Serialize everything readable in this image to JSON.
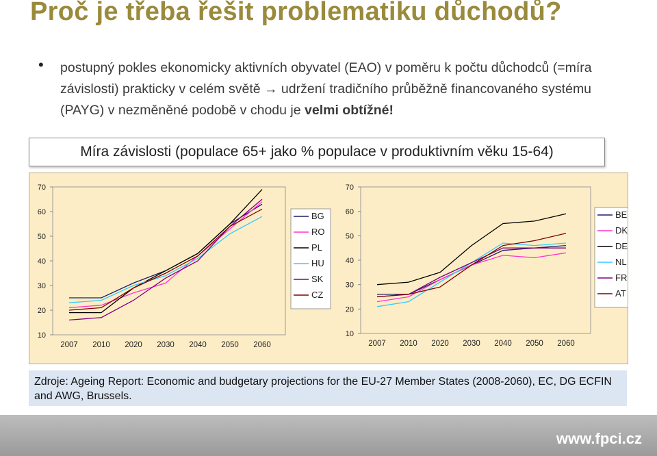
{
  "slide": {
    "title": "Proč je třeba řešit problematiku důchodů?",
    "bullet": {
      "part1": "postupný pokles ekonomicky aktivních obyvatel (EAO) v poměru k počtu důchodců (=míra závislosti) prakticky v celém světě → udržení tradičního průběžně financovaného systému (PAYG) v nezměněné podobě v chodu je ",
      "part2": "velmi obtížné!"
    },
    "chart_heading": "Míra závislosti (populace 65+ jako % populace v produktivním věku 15-64)",
    "source": "Zdroje: Ageing Report: Economic and budgetary projections for the EU-27 Member States (2008-2060), EC, DG ECFIN and AWG, Brussels.",
    "footer_url": "www.fpci.cz"
  },
  "colors": {
    "title": "#9a8a3c",
    "panel_background": "#fdedc6",
    "source_background": "#dce5f2",
    "BG": "#1c1c6e",
    "RO": "#ff33cc",
    "PL": "#000000",
    "HU": "#33ccff",
    "SK": "#800080",
    "CZ": "#800000",
    "BE": "#1c1c6e",
    "DK": "#ff33cc",
    "DE": "#000000",
    "NL": "#33ccff",
    "FR": "#800080",
    "AT": "#800000"
  },
  "chart_data": [
    {
      "type": "line",
      "title": "",
      "x": [
        "2007",
        "2010",
        "2020",
        "2030",
        "2040",
        "2050",
        "2060"
      ],
      "ylim": [
        10,
        70
      ],
      "yticks": [
        10,
        20,
        30,
        40,
        50,
        60,
        70
      ],
      "legend_position": "right",
      "series": [
        {
          "name": "BG",
          "values": [
            25,
            25,
            31,
            36,
            43,
            55,
            63
          ]
        },
        {
          "name": "RO",
          "values": [
            21,
            22,
            27,
            31,
            42,
            53,
            64
          ]
        },
        {
          "name": "PL",
          "values": [
            19,
            19,
            29,
            36,
            43,
            55,
            69
          ]
        },
        {
          "name": "HU",
          "values": [
            23,
            24,
            30,
            34,
            41,
            51,
            58
          ]
        },
        {
          "name": "SK",
          "values": [
            16,
            17,
            24,
            33,
            40,
            54,
            65
          ]
        },
        {
          "name": "CZ",
          "values": [
            20,
            21,
            29,
            35,
            42,
            54,
            61
          ]
        }
      ]
    },
    {
      "type": "line",
      "title": "",
      "x": [
        "2007",
        "2010",
        "2020",
        "2030",
        "2040",
        "2050",
        "2060"
      ],
      "ylim": [
        10,
        70
      ],
      "yticks": [
        10,
        20,
        30,
        40,
        50,
        60,
        70
      ],
      "legend_position": "right",
      "series": [
        {
          "name": "BE",
          "values": [
            26,
            26,
            32,
            38,
            44,
            45,
            46
          ]
        },
        {
          "name": "DK",
          "values": [
            23,
            25,
            32,
            38,
            42,
            41,
            43
          ]
        },
        {
          "name": "DE",
          "values": [
            30,
            31,
            35,
            46,
            55,
            56,
            59
          ]
        },
        {
          "name": "NL",
          "values": [
            21,
            23,
            31,
            39,
            47,
            46,
            47
          ]
        },
        {
          "name": "FR",
          "values": [
            25,
            26,
            33,
            39,
            45,
            45,
            45
          ]
        },
        {
          "name": "AT",
          "values": [
            25,
            26,
            29,
            38,
            46,
            48,
            51
          ]
        }
      ]
    }
  ]
}
